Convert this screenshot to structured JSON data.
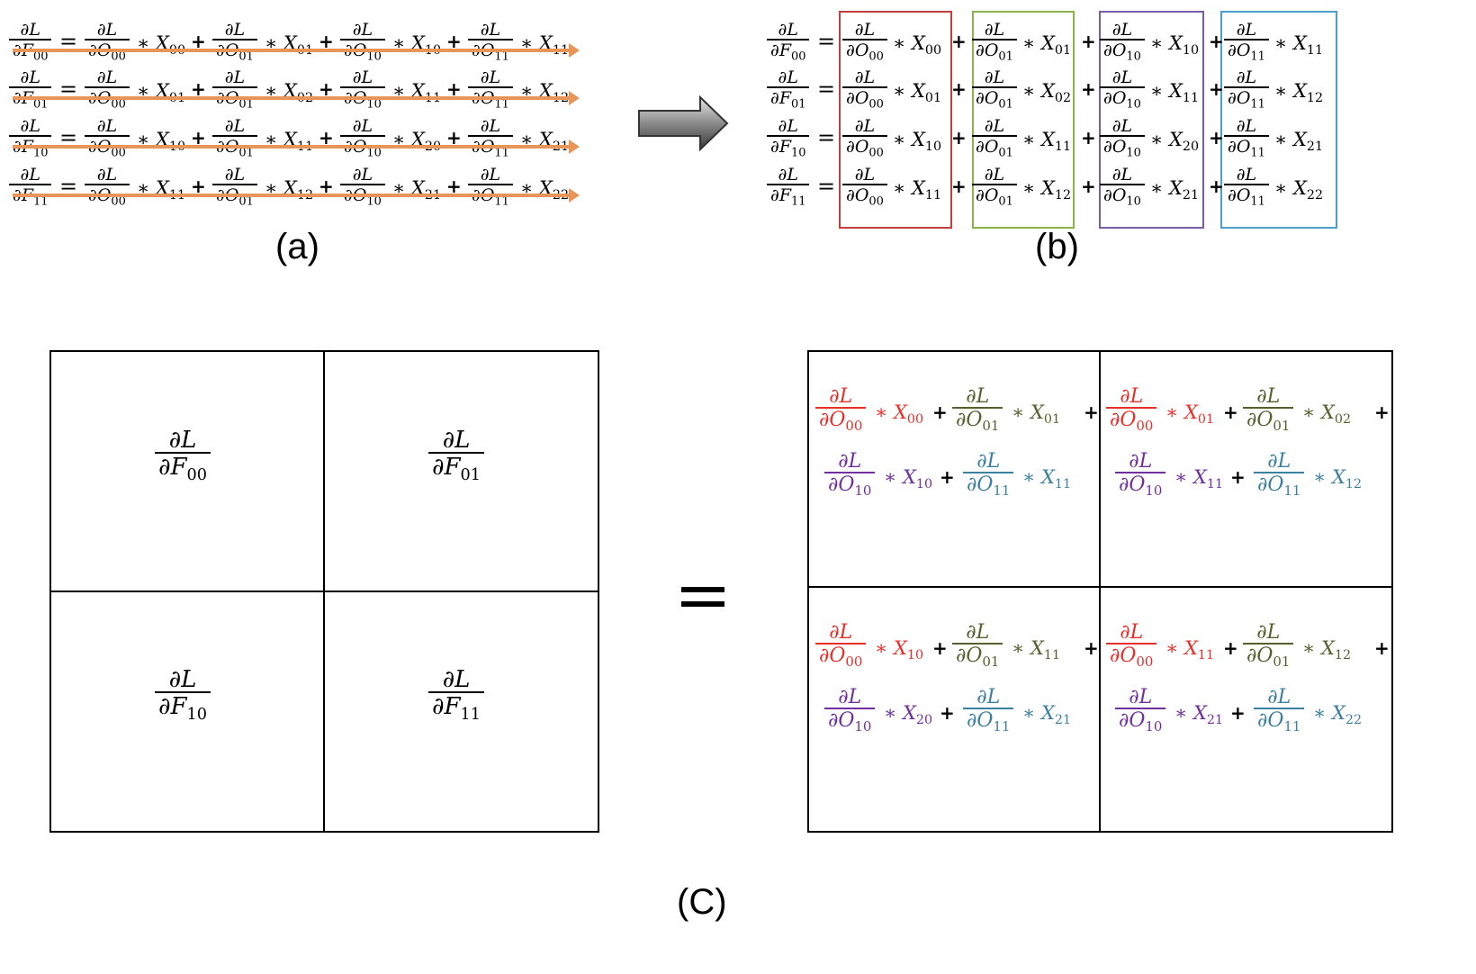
{
  "captions": {
    "a": "(a)",
    "b": "(b)",
    "c": "(C)"
  },
  "colors": {
    "arrow_line": "#e8955a",
    "box1": "#c0403c",
    "box2": "#8bb34a",
    "box3": "#7b5aa6",
    "box4": "#4aa0c8",
    "term1": "#e8302a",
    "term2": "#56602c",
    "term3": "#7030a0",
    "term4": "#3c7fa0"
  },
  "symbols": {
    "dL": "∂L",
    "times": "∗",
    "plus": "+",
    "equals": "="
  },
  "lhs": [
    "F00",
    "F01",
    "F10",
    "F11"
  ],
  "outputs": [
    "O00",
    "O01",
    "O10",
    "O11"
  ],
  "x_indices": [
    [
      "00",
      "01",
      "10",
      "11"
    ],
    [
      "01",
      "02",
      "11",
      "12"
    ],
    [
      "10",
      "11",
      "20",
      "21"
    ],
    [
      "11",
      "12",
      "21",
      "22"
    ]
  ],
  "icons": {
    "arrow": "right-arrow-icon"
  }
}
